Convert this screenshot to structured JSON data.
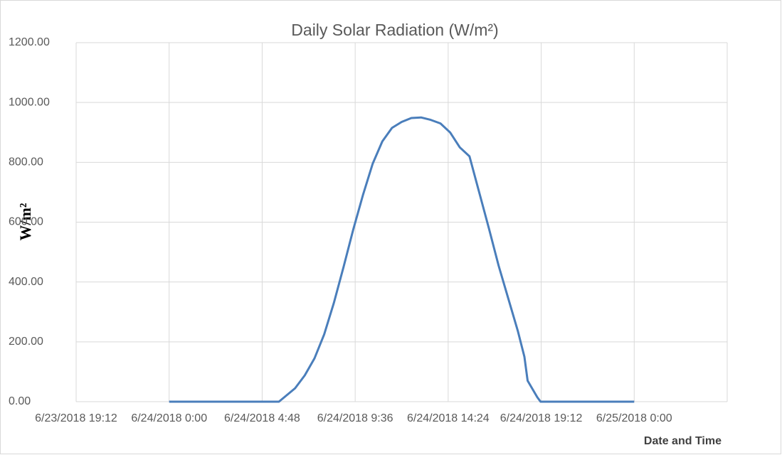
{
  "chart_data": {
    "type": "line",
    "title": "Daily Solar Radiation (W/m²)",
    "y_label": "W/m²",
    "x_label": "Date and Time",
    "x": [
      "6/24/2018 0:00",
      "6/24/2018 5:00",
      "6/24/2018 5:40",
      "6/24/2018 6:30",
      "6/24/2018 7:00",
      "6/24/2018 7:30",
      "6/24/2018 8:00",
      "6/24/2018 8:30",
      "6/24/2018 9:00",
      "6/24/2018 9:30",
      "6/24/2018 10:00",
      "6/24/2018 10:30",
      "6/24/2018 11:00",
      "6/24/2018 11:30",
      "6/24/2018 12:00",
      "6/24/2018 12:30",
      "6/24/2018 13:00",
      "6/24/2018 13:30",
      "6/24/2018 14:00",
      "6/24/2018 14:30",
      "6/24/2018 15:00",
      "6/24/2018 15:30",
      "6/24/2018 16:00",
      "6/24/2018 16:30",
      "6/24/2018 17:00",
      "6/24/2018 17:30",
      "6/24/2018 18:00",
      "6/24/2018 18:20",
      "6/24/2018 18:30",
      "6/24/2018 19:00",
      "6/24/2018 19:10",
      "6/25/2018 0:00"
    ],
    "series": [
      {
        "name": "Solar Radiation",
        "color": "#4a7ebb",
        "values": [
          0,
          0,
          0,
          45,
          88,
          145,
          225,
          330,
          450,
          575,
          690,
          795,
          870,
          915,
          935,
          948,
          950,
          942,
          930,
          900,
          850,
          820,
          700,
          580,
          455,
          345,
          235,
          150,
          70,
          15,
          0,
          0
        ]
      }
    ],
    "xlim": [
      "6/23/2018 19:12",
      "6/25/2018 4:48"
    ],
    "xticks": [
      "6/23/2018 19:12",
      "6/24/2018 0:00",
      "6/24/2018 4:48",
      "6/24/2018 9:36",
      "6/24/2018 14:24",
      "6/24/2018 19:12",
      "6/25/2018 0:00"
    ],
    "ylim": [
      0,
      1200
    ],
    "yticks": [
      {
        "value": 0,
        "label": "0.00"
      },
      {
        "value": 200,
        "label": "200.00"
      },
      {
        "value": 400,
        "label": "400.00"
      },
      {
        "value": 600,
        "label": "600.00"
      },
      {
        "value": 800,
        "label": "800.00"
      },
      {
        "value": 1000,
        "label": "1000.00"
      },
      {
        "value": 1200,
        "label": "1200.00"
      }
    ],
    "grid": true
  }
}
